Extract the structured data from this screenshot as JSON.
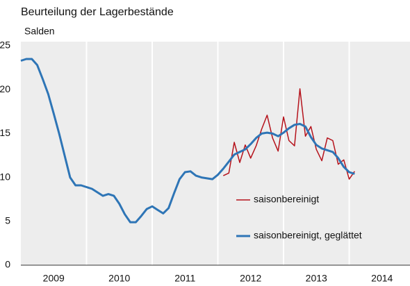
{
  "chart_data": {
    "type": "line",
    "title": "Beurteilung der Lagerbestände",
    "y_label": "Salden",
    "xlim": [
      2009,
      2014.926
    ],
    "ylim": [
      0,
      25
    ],
    "yticks": [
      0,
      5,
      10,
      15,
      20,
      25
    ],
    "xticks": [
      {
        "value": 2009.5,
        "label": "2009"
      },
      {
        "value": 2010.5,
        "label": "2010"
      },
      {
        "value": 2011.5,
        "label": "2011"
      },
      {
        "value": 2012.5,
        "label": "2012"
      },
      {
        "value": 2013.5,
        "label": "2013"
      },
      {
        "value": 2014.5,
        "label": "2014"
      }
    ],
    "x_grid": [
      2010,
      2011,
      2012,
      2013,
      2014
    ],
    "legend": "lower-right",
    "series": [
      {
        "name": "saisonbereinigt",
        "color": "#b5121b",
        "width": 1.5,
        "x": [
          2012.083,
          2012.167,
          2012.25,
          2012.333,
          2012.417,
          2012.5,
          2012.583,
          2012.667,
          2012.75,
          2012.833,
          2012.917,
          2013.0,
          2013.083,
          2013.167,
          2013.25,
          2013.333,
          2013.417,
          2013.5,
          2013.583,
          2013.667,
          2013.75,
          2013.833,
          2013.917,
          2014.0,
          2014.083
        ],
        "values": [
          10.2,
          10.5,
          14,
          11.7,
          13.7,
          12.2,
          13.6,
          15.5,
          17.1,
          14.5,
          13,
          16.9,
          14.2,
          13.6,
          20.1,
          14.7,
          15.8,
          13.2,
          11.9,
          14.5,
          14.2,
          11.5,
          12,
          9.8,
          10.7
        ]
      },
      {
        "name": "saisonbereinigt, geglättet",
        "color": "#2e75b6",
        "width": 3,
        "x": [
          2009.0,
          2009.083,
          2009.167,
          2009.25,
          2009.333,
          2009.417,
          2009.5,
          2009.583,
          2009.667,
          2009.75,
          2009.833,
          2009.917,
          2010.0,
          2010.083,
          2010.167,
          2010.25,
          2010.333,
          2010.417,
          2010.5,
          2010.583,
          2010.667,
          2010.75,
          2010.833,
          2010.917,
          2011.0,
          2011.083,
          2011.167,
          2011.25,
          2011.333,
          2011.417,
          2011.5,
          2011.583,
          2011.667,
          2011.75,
          2011.833,
          2011.917,
          2012.0,
          2012.083,
          2012.167,
          2012.25,
          2012.333,
          2012.417,
          2012.5,
          2012.583,
          2012.667,
          2012.75,
          2012.833,
          2012.917,
          2013.0,
          2013.083,
          2013.167,
          2013.25,
          2013.333,
          2013.417,
          2013.5,
          2013.583,
          2013.667,
          2013.75,
          2013.833,
          2013.917,
          2014.0,
          2014.083
        ],
        "values": [
          23.3,
          23.5,
          23.5,
          22.8,
          21.2,
          19.5,
          17.3,
          15,
          12.5,
          10,
          9.1,
          9.1,
          8.9,
          8.7,
          8.3,
          7.9,
          8.1,
          7.9,
          7,
          5.8,
          4.9,
          4.9,
          5.6,
          6.4,
          6.7,
          6.3,
          5.9,
          6.5,
          8.2,
          9.8,
          10.6,
          10.7,
          10.2,
          10,
          9.9,
          9.8,
          10.3,
          11,
          11.8,
          12.6,
          12.9,
          13.2,
          13.8,
          14.5,
          15,
          15.1,
          15,
          14.7,
          15.1,
          15.6,
          16,
          16.1,
          15.8,
          14.6,
          13.7,
          13.3,
          13.1,
          12.9,
          12.2,
          11.2,
          10.6,
          10.4
        ]
      }
    ]
  }
}
